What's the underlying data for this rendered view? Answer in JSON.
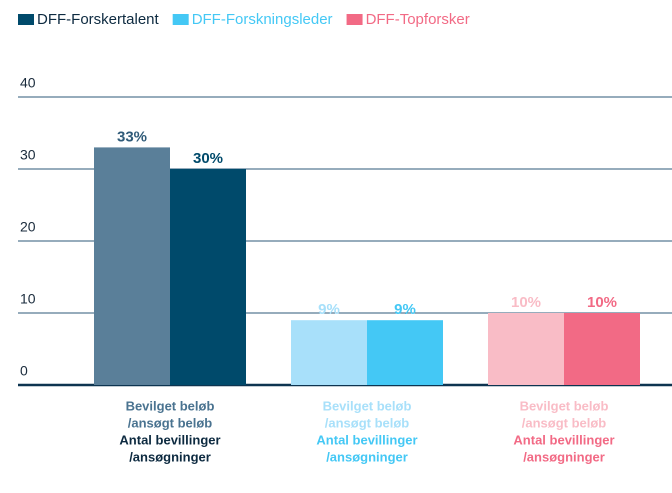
{
  "chart_data": {
    "type": "grouped_bar",
    "metrics": [
      [
        "Bevilget beløb",
        "/ansøgt beløb"
      ],
      [
        "Antal bevillinger",
        "/ansøgninger"
      ]
    ],
    "series": [
      {
        "name": "DFF-Forskertalent",
        "color": "#004a6b",
        "light_color": "#5a7f99",
        "values": [
          33,
          30
        ],
        "value_labels": [
          "33%",
          "30%"
        ]
      },
      {
        "name": "DFF-Forskningsleder",
        "color": "#44c8f5",
        "light_color": "#a8e0fa",
        "values": [
          9,
          9
        ],
        "value_labels": [
          "9%",
          "9%"
        ]
      },
      {
        "name": "DFF-Topforsker",
        "color": "#f26a85",
        "light_color": "#f9bcc6",
        "values": [
          10,
          10
        ],
        "value_labels": [
          "10%",
          "10%"
        ]
      }
    ],
    "ylim": [
      0,
      40
    ],
    "yticks": [
      0,
      10,
      20,
      30,
      40
    ],
    "grid": true
  }
}
